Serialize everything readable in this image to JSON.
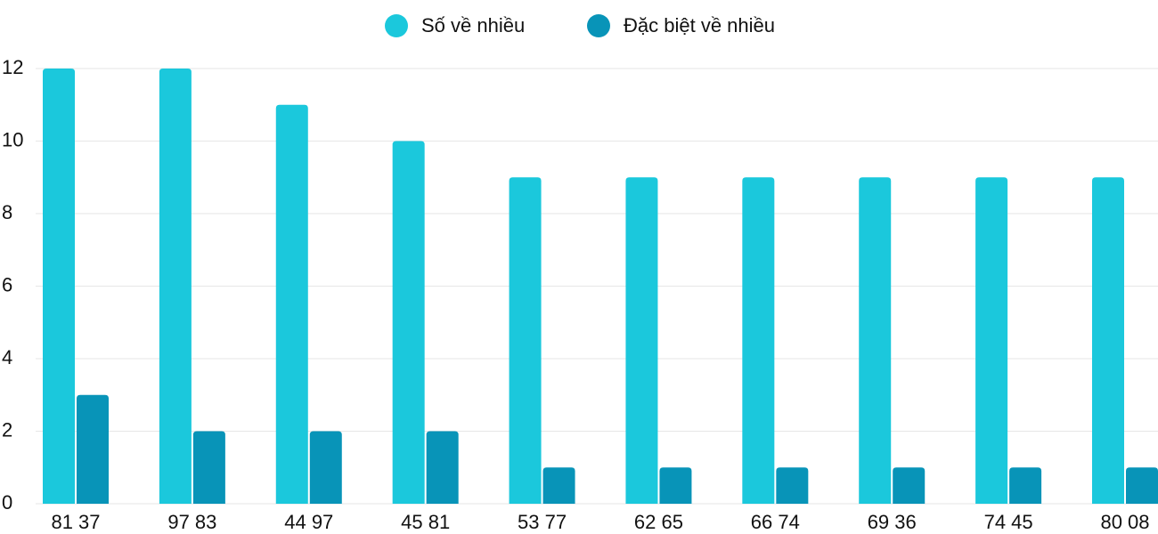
{
  "chart_data": {
    "type": "bar",
    "categories": [
      "81 37",
      "97 83",
      "44 97",
      "45 81",
      "53 77",
      "62 65",
      "66 74",
      "69 36",
      "74 45",
      "80 08"
    ],
    "series": [
      {
        "name": "Số về nhiều",
        "color": "#1bc8dc",
        "values": [
          12,
          12,
          11,
          10,
          9,
          9,
          9,
          9,
          9,
          9
        ]
      },
      {
        "name": "Đặc biệt về nhiều",
        "color": "#0894b8",
        "values": [
          3,
          2,
          2,
          2,
          1,
          1,
          1,
          1,
          1,
          1
        ]
      }
    ],
    "ylim": [
      0,
      12
    ],
    "yticks": [
      0,
      2,
      4,
      6,
      8,
      10,
      12
    ],
    "grid": true,
    "legend": "top"
  }
}
